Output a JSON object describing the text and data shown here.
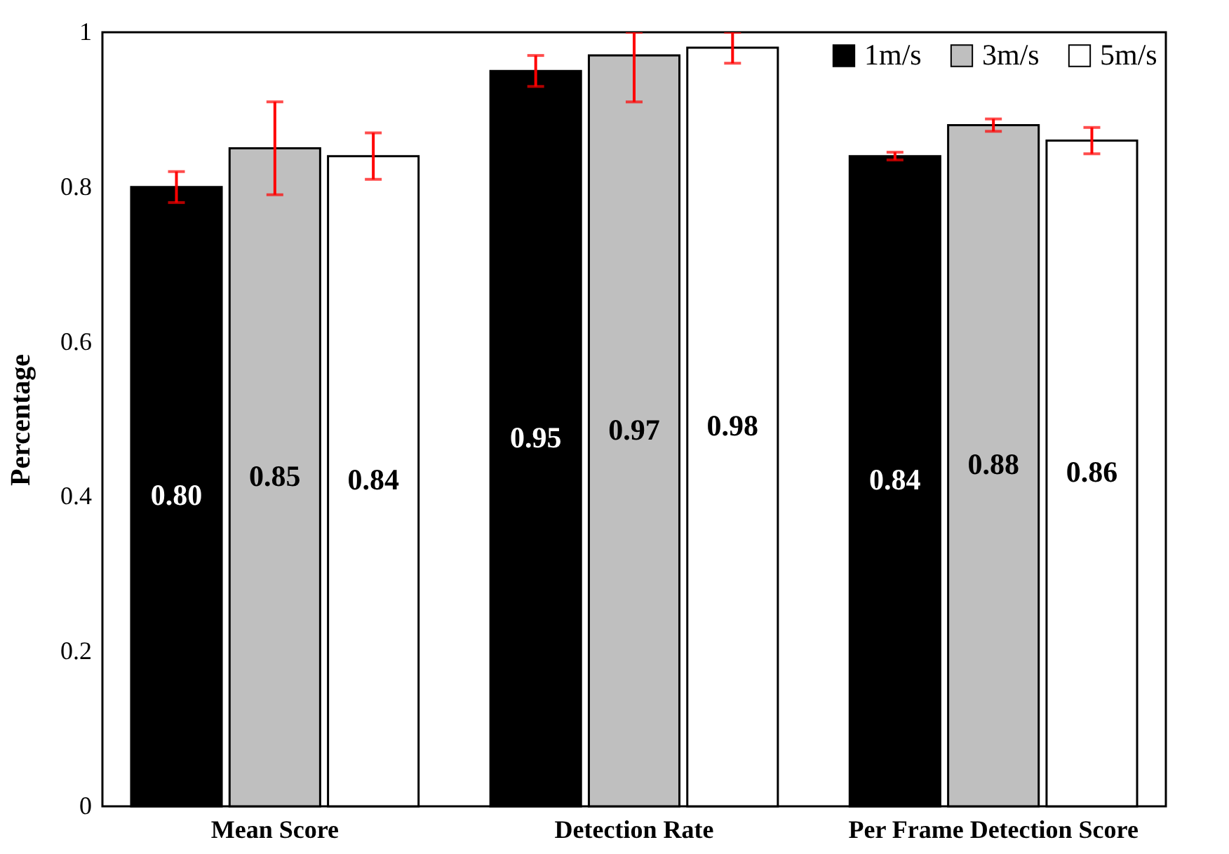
{
  "chart_data": {
    "type": "bar",
    "ylabel": "Percentage",
    "categories": [
      "Mean Score",
      "Detection Rate",
      "Per Frame Detection Score"
    ],
    "series": [
      {
        "name": "1m/s",
        "color": "#000000",
        "values": [
          0.8,
          0.95,
          0.84
        ],
        "value_labels": [
          "0.80",
          "0.95",
          "0.84"
        ],
        "errors": [
          0.02,
          0.02,
          0.005
        ]
      },
      {
        "name": "3m/s",
        "color": "#bfbfbf",
        "values": [
          0.85,
          0.97,
          0.88
        ],
        "value_labels": [
          "0.85",
          "0.97",
          "0.88"
        ],
        "errors": [
          0.06,
          [
            0.91,
            1
          ],
          0.008
        ]
      },
      {
        "name": "5m/s",
        "color": "#ffffff",
        "values": [
          0.84,
          0.98,
          0.86
        ],
        "value_labels": [
          "0.84",
          "0.98",
          "0.86"
        ],
        "errors": [
          0.03,
          [
            0.96,
            1
          ],
          0.017
        ]
      }
    ],
    "ylim": [
      0,
      1
    ],
    "yticks": [
      0,
      0.2,
      0.4,
      0.6,
      0.8,
      1
    ],
    "legend": "top right",
    "grid": false
  }
}
